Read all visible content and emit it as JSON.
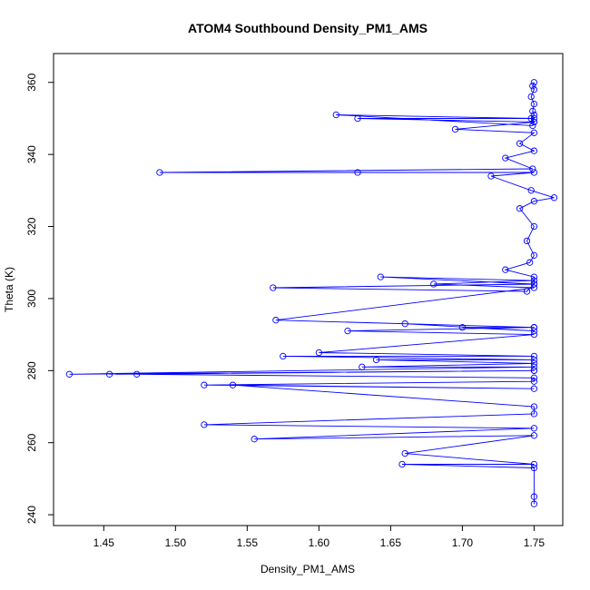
{
  "chart_data": {
    "type": "line",
    "title": "ATOM4 Southbound Density_PM1_AMS",
    "xlabel": "Density_PM1_AMS",
    "ylabel": "Theta (K)",
    "xlim": [
      1.415,
      1.77
    ],
    "ylim": [
      237,
      368
    ],
    "x_ticks": [
      "1.45",
      "1.50",
      "1.55",
      "1.60",
      "1.65",
      "1.70",
      "1.75"
    ],
    "y_ticks": [
      "240",
      "260",
      "280",
      "300",
      "320",
      "340",
      "360"
    ],
    "marker": "open-circle",
    "series": [
      {
        "color": "#0000ff",
        "x": [
          1.75,
          1.749,
          1.75,
          1.748,
          1.75,
          1.749,
          1.75,
          1.748,
          1.75,
          1.749,
          1.612,
          1.75,
          1.627,
          1.75,
          1.695,
          1.75,
          1.74,
          1.75,
          1.73,
          1.749,
          1.489,
          1.627,
          1.75,
          1.72,
          1.748,
          1.764,
          1.75,
          1.74,
          1.75,
          1.745,
          1.75,
          1.747,
          1.73,
          1.75,
          1.75,
          1.745,
          1.568,
          1.75,
          1.643,
          1.75,
          1.68,
          1.75,
          1.57,
          1.75,
          1.7,
          1.75,
          1.66,
          1.75,
          1.62,
          1.75,
          1.6,
          1.75,
          1.575,
          1.75,
          1.64,
          1.75,
          1.63,
          1.75,
          1.426,
          1.75,
          1.454,
          1.75,
          1.473,
          1.75,
          1.75,
          1.52,
          1.75,
          1.54,
          1.75,
          1.75,
          1.52,
          1.75,
          1.555,
          1.75,
          1.66,
          1.75,
          1.658,
          1.75,
          1.75,
          1.75
        ],
        "y": [
          360,
          359,
          358,
          356,
          354,
          352,
          351,
          350,
          349,
          348,
          351,
          350,
          350,
          349,
          347,
          346,
          343,
          341,
          339,
          336,
          335,
          335,
          335,
          334,
          330,
          328,
          327,
          325,
          320,
          316,
          312,
          310,
          308,
          306,
          304,
          302,
          303,
          304,
          306,
          305,
          304,
          303,
          294,
          292,
          292,
          291,
          293,
          292,
          291,
          290,
          285,
          284,
          284,
          283,
          283,
          282,
          281,
          281,
          279,
          280,
          279,
          280,
          279,
          278,
          277,
          276,
          275,
          276,
          270,
          268,
          265,
          264,
          261,
          262,
          257,
          254,
          254,
          253,
          245,
          243
        ]
      }
    ]
  }
}
